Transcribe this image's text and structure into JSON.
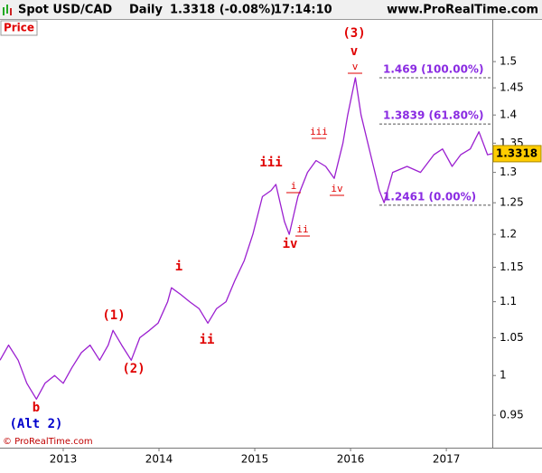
{
  "header": {
    "symbol": "Spot USD/CAD",
    "period": "Daily",
    "quote": "1.3318 (-0.08%)",
    "time": "17:14:10",
    "site": "www.ProRealTime.com"
  },
  "panel_label": "Price",
  "copyright": "© ProRealTime.com",
  "chart_data": {
    "type": "line",
    "log_scale": true,
    "color": "#9b1fd0",
    "x": [
      2012.34,
      2012.43,
      2012.53,
      2012.62,
      2012.72,
      2012.81,
      2012.91,
      2013.0,
      2013.09,
      2013.19,
      2013.28,
      2013.38,
      2013.47,
      2013.52,
      2013.61,
      2013.71,
      2013.8,
      2013.9,
      2013.99,
      2014.09,
      2014.13,
      2014.23,
      2014.32,
      2014.42,
      2014.51,
      2014.6,
      2014.7,
      2014.79,
      2014.89,
      2014.98,
      2015.08,
      2015.17,
      2015.22,
      2015.31,
      2015.36,
      2015.45,
      2015.55,
      2015.64,
      2015.74,
      2015.83,
      2015.92,
      2015.97,
      2016.05,
      2016.11,
      2016.21,
      2016.3,
      2016.35,
      2016.44,
      2016.59,
      2016.73,
      2016.87,
      2016.96,
      2017.06,
      2017.15,
      2017.25,
      2017.34,
      2017.43,
      2017.48
    ],
    "values": [
      1.02,
      1.04,
      1.02,
      0.99,
      0.97,
      0.99,
      1.0,
      0.99,
      1.01,
      1.03,
      1.04,
      1.02,
      1.04,
      1.06,
      1.04,
      1.02,
      1.05,
      1.06,
      1.07,
      1.1,
      1.12,
      1.11,
      1.1,
      1.09,
      1.07,
      1.09,
      1.1,
      1.13,
      1.16,
      1.2,
      1.26,
      1.27,
      1.28,
      1.22,
      1.2,
      1.26,
      1.3,
      1.32,
      1.31,
      1.29,
      1.35,
      1.4,
      1.469,
      1.4,
      1.33,
      1.27,
      1.25,
      1.3,
      1.31,
      1.3,
      1.33,
      1.34,
      1.31,
      1.33,
      1.34,
      1.37,
      1.33,
      1.3318
    ],
    "xlim": [
      2012.34,
      2017.48
    ],
    "xticks": [
      2013,
      2014,
      2015,
      2016,
      2017
    ],
    "ylim": [
      0.911,
      1.583
    ],
    "yticks": [
      0.95,
      1,
      1.05,
      1.1,
      1.15,
      1.2,
      1.25,
      1.3,
      1.35,
      1.4,
      1.45,
      1.5
    ],
    "last_price": 1.3318,
    "fib_levels": [
      {
        "value": 1.469,
        "label": "1.469 (100.00%)"
      },
      {
        "value": 1.3839,
        "label": "1.3839 (61.80%)"
      },
      {
        "value": 1.2461,
        "label": "1.2461 (0.00%)"
      }
    ],
    "annotations": [
      "(3)",
      "v",
      "v",
      "iii",
      "i",
      "ii",
      "iv",
      "iv",
      "iii",
      "i",
      "ii",
      "(1)",
      "(2)",
      "b",
      "(Alt 2)"
    ]
  }
}
